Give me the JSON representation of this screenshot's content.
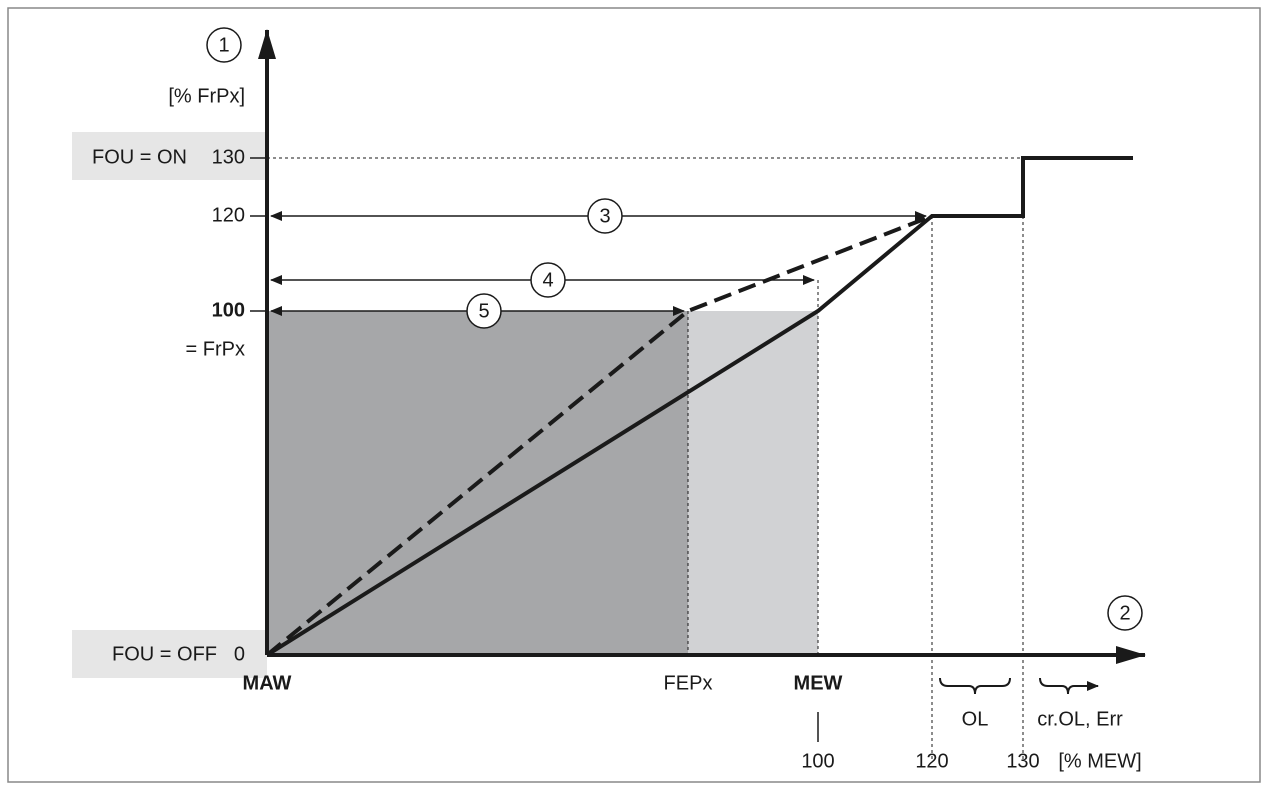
{
  "y_axis": {
    "marker": "1",
    "unit": "[% FrPx]",
    "on_label": "FOU = ON",
    "tick_130": "130",
    "tick_120": "120",
    "tick_100": "100",
    "frpx_label": "= FrPx",
    "off_label": "FOU = OFF",
    "tick_0": "0"
  },
  "x_axis": {
    "marker": "2",
    "maw": "MAW",
    "fepx": "FEPx",
    "mew": "MEW",
    "tick_100": "100",
    "tick_120": "120",
    "tick_130": "130",
    "unit": "[% MEW]",
    "ol": "OL",
    "err": "cr.OL, Err"
  },
  "ranges": {
    "range_3": "3",
    "range_4": "4",
    "range_5": "5"
  }
}
